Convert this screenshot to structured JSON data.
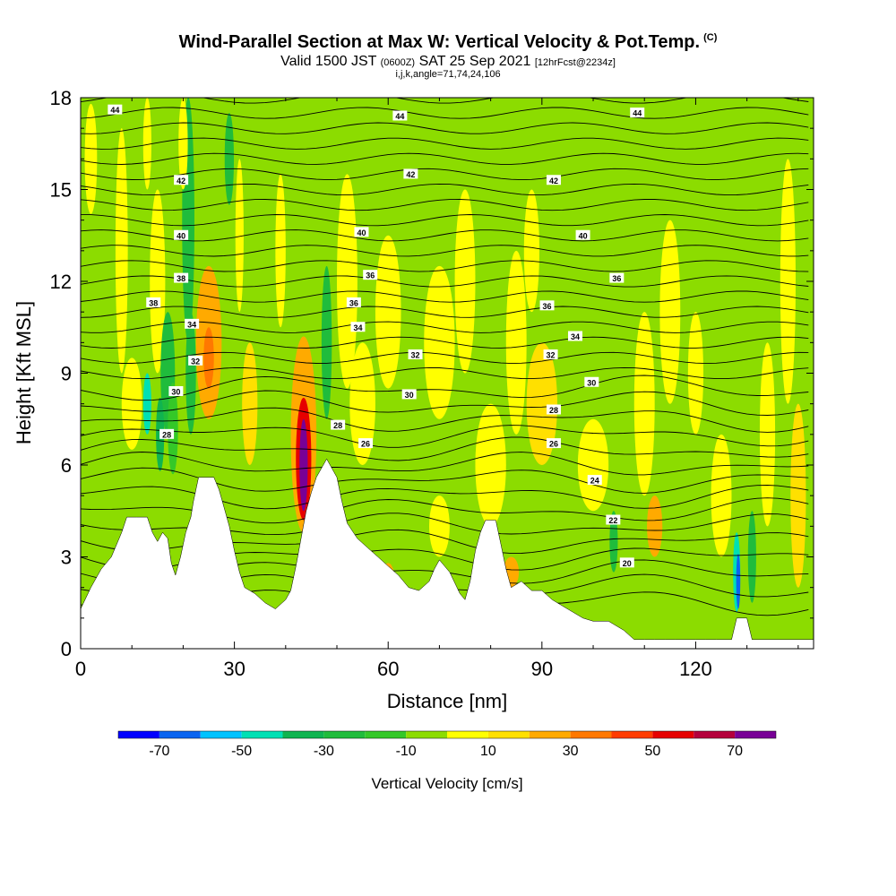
{
  "title": {
    "main": "Wind-Parallel Section at Max W: Vertical Velocity & Pot.Temp.",
    "copyright": "(C)",
    "valid_prefix": "Valid 1500 JST",
    "valid_utc": "(0600Z)",
    "valid_date": "SAT 25 Sep 2021",
    "forecast": "[12hrFcst@2234z]",
    "indices": "i,j,k,angle=71,74,24,106"
  },
  "chart_data": {
    "type": "heatmap",
    "xlabel": "Distance [nm]",
    "ylabel": "Height [Kft MSL]",
    "xlim": [
      0,
      143
    ],
    "ylim": [
      0,
      18
    ],
    "x_ticks": [
      0,
      30,
      60,
      90,
      120
    ],
    "y_ticks": [
      0,
      3,
      6,
      9,
      12,
      15,
      18
    ],
    "grid": false,
    "fill_field": "Vertical Velocity",
    "colorbar": {
      "label": "Vertical Velocity [cm/s]",
      "tick_labels": [
        "-70",
        "-50",
        "-30",
        "-10",
        "10",
        "30",
        "50",
        "70"
      ],
      "levels": [
        -80,
        -70,
        -60,
        -50,
        -40,
        -30,
        -20,
        -10,
        0,
        10,
        20,
        30,
        40,
        50,
        60,
        70,
        80
      ],
      "colors": [
        "#0000ff",
        "#0a64f0",
        "#00c3ff",
        "#00e0b4",
        "#10b450",
        "#20bc3c",
        "#34c828",
        "#8cdc00",
        "#ffff00",
        "#ffe000",
        "#ffaa00",
        "#ff7800",
        "#ff3c00",
        "#e60000",
        "#b4003c",
        "#780096"
      ]
    },
    "background_level": "-10 to 0",
    "contour_field": "Potential Temperature (C)",
    "contour_interval": 2,
    "contour_range": [
      20,
      44
    ],
    "contour_labels": [
      {
        "value": "44",
        "x": 6.7,
        "y": 17.6
      },
      {
        "value": "44",
        "x": 62.3,
        "y": 17.4
      },
      {
        "value": "44",
        "x": 108.6,
        "y": 17.5
      },
      {
        "value": "42",
        "x": 19.6,
        "y": 15.3
      },
      {
        "value": "42",
        "x": 64.4,
        "y": 15.5
      },
      {
        "value": "42",
        "x": 92.3,
        "y": 15.3
      },
      {
        "value": "40",
        "x": 19.6,
        "y": 13.5
      },
      {
        "value": "40",
        "x": 54.8,
        "y": 13.6
      },
      {
        "value": "40",
        "x": 98.0,
        "y": 13.5
      },
      {
        "value": "38",
        "x": 19.6,
        "y": 12.1
      },
      {
        "value": "38",
        "x": 14.2,
        "y": 11.3
      },
      {
        "value": "36",
        "x": 56.5,
        "y": 12.2
      },
      {
        "value": "36",
        "x": 53.3,
        "y": 11.3
      },
      {
        "value": "36",
        "x": 104.6,
        "y": 12.1
      },
      {
        "value": "36",
        "x": 91.0,
        "y": 11.2
      },
      {
        "value": "34",
        "x": 21.7,
        "y": 10.6
      },
      {
        "value": "34",
        "x": 54.1,
        "y": 10.5
      },
      {
        "value": "34",
        "x": 96.5,
        "y": 10.2
      },
      {
        "value": "32",
        "x": 22.4,
        "y": 9.4
      },
      {
        "value": "32",
        "x": 65.3,
        "y": 9.6
      },
      {
        "value": "32",
        "x": 91.7,
        "y": 9.6
      },
      {
        "value": "30",
        "x": 18.6,
        "y": 8.4
      },
      {
        "value": "30",
        "x": 64.1,
        "y": 8.3
      },
      {
        "value": "30",
        "x": 99.7,
        "y": 8.7
      },
      {
        "value": "28",
        "x": 16.8,
        "y": 7.0
      },
      {
        "value": "28",
        "x": 50.2,
        "y": 7.3
      },
      {
        "value": "28",
        "x": 92.3,
        "y": 7.8
      },
      {
        "value": "26",
        "x": 55.6,
        "y": 6.7
      },
      {
        "value": "26",
        "x": 92.3,
        "y": 6.7
      },
      {
        "value": "24",
        "x": 100.3,
        "y": 5.5
      },
      {
        "value": "22",
        "x": 103.9,
        "y": 4.2
      },
      {
        "value": "20",
        "x": 106.6,
        "y": 2.8
      }
    ],
    "terrain_heights_kft": [
      [
        0,
        1.3
      ],
      [
        2,
        2.0
      ],
      [
        4,
        2.6
      ],
      [
        6,
        3.0
      ],
      [
        8,
        3.8
      ],
      [
        9,
        4.3
      ],
      [
        11,
        4.3
      ],
      [
        13,
        4.3
      ],
      [
        14,
        3.8
      ],
      [
        15,
        3.5
      ],
      [
        16,
        3.8
      ],
      [
        17,
        3.6
      ],
      [
        17.7,
        2.8
      ],
      [
        18.5,
        2.4
      ],
      [
        19.5,
        3.0
      ],
      [
        20.5,
        3.8
      ],
      [
        21.5,
        4.3
      ],
      [
        22,
        4.8
      ],
      [
        23,
        5.6
      ],
      [
        26,
        5.6
      ],
      [
        27,
        5.2
      ],
      [
        28,
        4.6
      ],
      [
        29,
        4.0
      ],
      [
        30,
        3.2
      ],
      [
        31,
        2.5
      ],
      [
        32,
        2.0
      ],
      [
        34,
        1.8
      ],
      [
        36,
        1.5
      ],
      [
        38,
        1.3
      ],
      [
        40,
        1.6
      ],
      [
        41,
        1.9
      ],
      [
        42,
        2.7
      ],
      [
        43,
        3.6
      ],
      [
        44,
        4.5
      ],
      [
        45,
        5.1
      ],
      [
        46,
        5.6
      ],
      [
        48,
        6.2
      ],
      [
        50,
        5.6
      ],
      [
        51,
        4.8
      ],
      [
        52,
        4.1
      ],
      [
        54,
        3.6
      ],
      [
        56,
        3.3
      ],
      [
        58,
        3.0
      ],
      [
        60,
        2.7
      ],
      [
        62,
        2.4
      ],
      [
        64,
        2.0
      ],
      [
        66,
        1.9
      ],
      [
        68,
        2.2
      ],
      [
        69,
        2.6
      ],
      [
        70,
        2.9
      ],
      [
        72,
        2.5
      ],
      [
        74,
        1.8
      ],
      [
        75,
        1.6
      ],
      [
        76,
        2.2
      ],
      [
        77,
        3.2
      ],
      [
        78,
        3.8
      ],
      [
        79,
        4.2
      ],
      [
        81,
        4.2
      ],
      [
        82,
        3.4
      ],
      [
        83,
        2.6
      ],
      [
        84,
        2.0
      ],
      [
        86,
        2.2
      ],
      [
        88,
        1.9
      ],
      [
        90,
        1.9
      ],
      [
        92,
        1.6
      ],
      [
        94,
        1.4
      ],
      [
        96,
        1.2
      ],
      [
        98,
        1.0
      ],
      [
        100,
        0.9
      ],
      [
        103,
        0.9
      ],
      [
        104,
        0.8
      ],
      [
        106,
        0.6
      ],
      [
        108,
        0.3
      ],
      [
        110,
        0.3
      ],
      [
        112,
        0.3
      ],
      [
        114,
        0.3
      ],
      [
        116,
        0.3
      ],
      [
        118,
        0.3
      ],
      [
        120,
        0.3
      ],
      [
        122,
        0.3
      ],
      [
        124,
        0.3
      ],
      [
        127,
        0.3
      ],
      [
        128,
        1.0
      ],
      [
        130,
        1.0
      ],
      [
        131,
        0.3
      ],
      [
        143,
        0.3
      ]
    ]
  }
}
